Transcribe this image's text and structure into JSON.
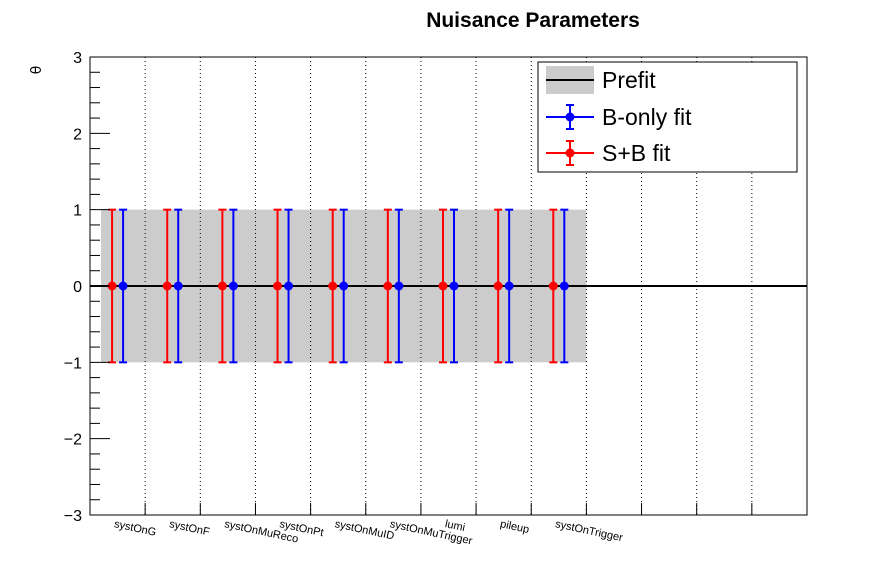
{
  "chart_data": {
    "type": "scatter",
    "title": "Nuisance Parameters",
    "xlabel": "",
    "ylabel": "θ",
    "ylim": [
      -3,
      3
    ],
    "yticks": [
      "3",
      "2",
      "1",
      "0",
      "−1",
      "−2",
      "−3"
    ],
    "n_slots": 13,
    "categories": [
      "systOnG",
      "systOnF",
      "systOnMuReco",
      "systOnPt",
      "systOnMuID",
      "systOnMuTrigger",
      "lumi",
      "pileup",
      "systOnTrigger"
    ],
    "prefit": {
      "center": 0,
      "band": [
        -1,
        1
      ]
    },
    "series": [
      {
        "name": "B-only fit",
        "color": "#0000ff",
        "values": [
          0,
          0,
          0,
          0,
          0,
          0,
          0,
          0,
          0
        ],
        "errors": [
          1,
          1,
          1,
          1,
          1,
          1,
          1,
          1,
          1
        ]
      },
      {
        "name": "S+B fit",
        "color": "#ff0000",
        "values": [
          0,
          0,
          0,
          0,
          0,
          0,
          0,
          0,
          0
        ],
        "errors": [
          1,
          1,
          1,
          1,
          1,
          1,
          1,
          1,
          1
        ]
      }
    ],
    "legend": {
      "position": "top-right",
      "entries": [
        "Prefit",
        "B-only fit",
        "S+B fit"
      ]
    },
    "grid": "vertical dotted",
    "colors": {
      "band": "#cccccc",
      "prefit_line": "#000000"
    }
  }
}
